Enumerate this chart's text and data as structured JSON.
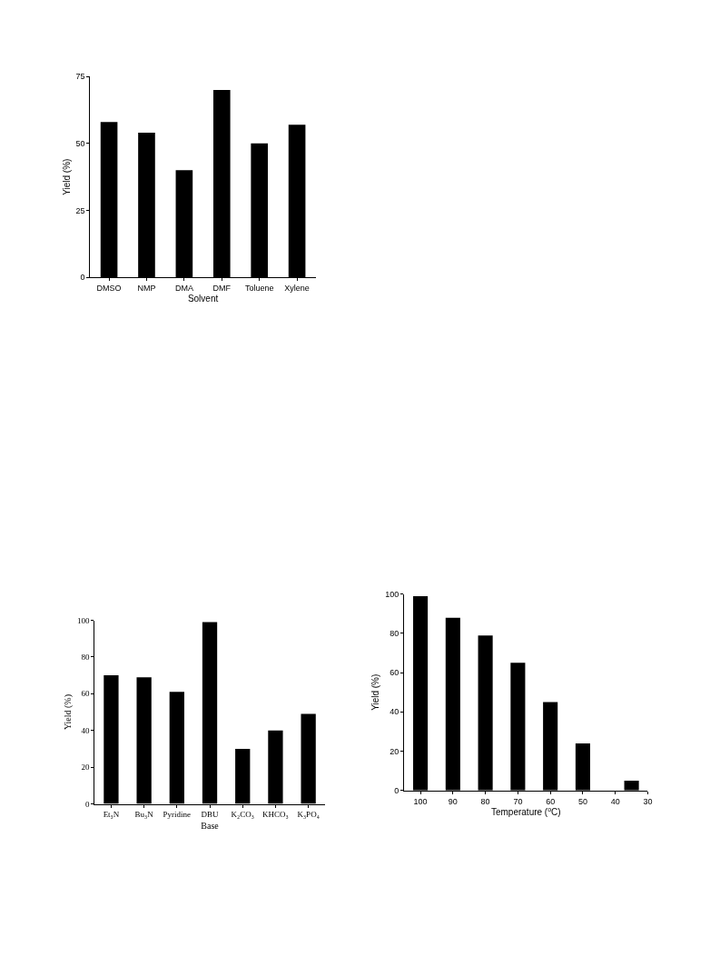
{
  "chart_data": [
    {
      "type": "bar",
      "xlabel": "Solvent",
      "ylabel": "Yield (%)",
      "categories": [
        "DMSO",
        "NMP",
        "DMA",
        "DMF",
        "Toluene",
        "Xylene"
      ],
      "values": [
        58,
        54,
        40,
        70,
        50,
        57
      ],
      "color": "#000000",
      "ylim": [
        0,
        75
      ],
      "yticks": [
        0,
        25,
        50,
        75
      ]
    },
    {
      "type": "bar",
      "xlabel": "Base",
      "ylabel": "Yield (%)",
      "categories": [
        "Et₃N",
        "Bu₃N",
        "Pyridine",
        "DBU",
        "K₂CO₃",
        "KHCO₃",
        "K₃PO₄"
      ],
      "values": [
        70,
        69,
        61,
        99,
        30,
        40,
        49
      ],
      "color": "#000000",
      "ylim": [
        0,
        100
      ],
      "yticks": [
        0,
        20,
        40,
        60,
        80,
        100
      ]
    },
    {
      "type": "bar",
      "xlabel": "Temperature ($^{o}$C)",
      "ylabel": "Yield (%)",
      "x": [
        100,
        90,
        80,
        70,
        60,
        50,
        35
      ],
      "values": [
        99,
        88,
        79,
        65,
        45,
        24,
        5
      ],
      "color": "#000000",
      "xlim": [
        105,
        30
      ],
      "xticks": [
        100,
        90,
        80,
        70,
        60,
        50,
        40,
        30
      ],
      "ylim": [
        0,
        100
      ],
      "yticks": [
        0,
        20,
        40,
        60,
        80,
        100
      ]
    }
  ]
}
